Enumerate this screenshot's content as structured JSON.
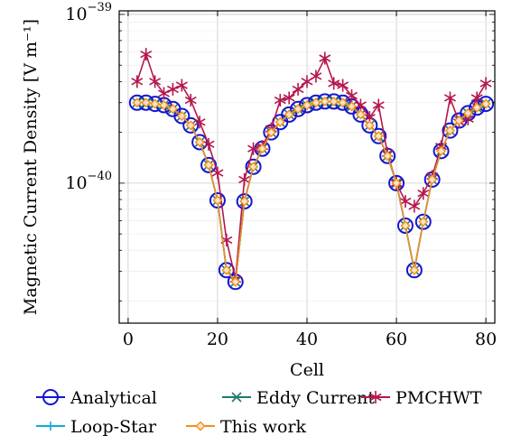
{
  "chart_data": {
    "type": "line",
    "xlabel": "Cell",
    "ylabel": "Magnetic Current Density [V m⁻¹]",
    "x_ticks": [
      0,
      20,
      40,
      60,
      80
    ],
    "y_ticks": [
      {
        "base": "10",
        "exp": "−39",
        "value": 1e-39
      },
      {
        "base": "10",
        "exp": "−40",
        "value": 1e-40
      }
    ],
    "xlim": [
      -2,
      82
    ],
    "ylim": [
      1.48e-41,
      1.05e-39
    ],
    "y_scale": "log",
    "grid": true,
    "legend_position": "bottom",
    "x": [
      2,
      4,
      6,
      8,
      10,
      12,
      14,
      16,
      18,
      20,
      22,
      24,
      26,
      28,
      30,
      32,
      34,
      36,
      38,
      40,
      42,
      44,
      46,
      48,
      50,
      52,
      54,
      56,
      58,
      60,
      62,
      64,
      66,
      68,
      70,
      72,
      74,
      76,
      78,
      80
    ],
    "series": [
      {
        "name": "Analytical",
        "color": "#1515d0",
        "marker": "circle",
        "values": [
          3e-40,
          3e-40,
          2.95e-40,
          2.9e-40,
          2.75e-40,
          2.5e-40,
          2.2e-40,
          1.75e-40,
          1.28e-40,
          7.9e-41,
          3.05e-41,
          2.6e-41,
          7.8e-41,
          1.25e-40,
          1.6e-40,
          2e-40,
          2.3e-40,
          2.55e-40,
          2.75e-40,
          2.9e-40,
          3e-40,
          3.05e-40,
          3.05e-40,
          3e-40,
          2.85e-40,
          2.55e-40,
          2.2e-40,
          1.9e-40,
          1.45e-40,
          1e-40,
          5.6e-41,
          3.05e-41,
          5.9e-41,
          1.05e-40,
          1.55e-40,
          2.05e-40,
          2.35e-40,
          2.6e-40,
          2.8e-40,
          2.95e-40
        ]
      },
      {
        "name": "Eddy Current",
        "color": "#1e7a6e",
        "marker": "x",
        "values": [
          3e-40,
          3e-40,
          2.95e-40,
          2.9e-40,
          2.75e-40,
          2.5e-40,
          2.2e-40,
          1.75e-40,
          1.28e-40,
          7.9e-41,
          3.05e-41,
          2.6e-41,
          7.8e-41,
          1.25e-40,
          1.6e-40,
          2e-40,
          2.3e-40,
          2.55e-40,
          2.75e-40,
          2.9e-40,
          3e-40,
          3.05e-40,
          3.05e-40,
          3e-40,
          2.85e-40,
          2.55e-40,
          2.2e-40,
          1.9e-40,
          1.45e-40,
          1e-40,
          5.6e-41,
          3.05e-41,
          5.9e-41,
          1.05e-40,
          1.55e-40,
          2.05e-40,
          2.35e-40,
          2.6e-40,
          2.8e-40,
          2.95e-40
        ]
      },
      {
        "name": "PMCHWT",
        "color": "#b5164e",
        "marker": "star",
        "values": [
          4e-40,
          5.8e-40,
          4e-40,
          3.4e-40,
          3.6e-40,
          3.8e-40,
          3.1e-40,
          2.3e-40,
          1.7e-40,
          1.15e-40,
          4.6e-41,
          2.7e-41,
          1.05e-40,
          1.6e-40,
          1.65e-40,
          2.1e-40,
          3.1e-40,
          3.2e-40,
          3.6e-40,
          4e-40,
          4.3e-40,
          5.5e-40,
          3.9e-40,
          3.8e-40,
          3.3e-40,
          2.9e-40,
          2.45e-40,
          2.9e-40,
          1.5e-40,
          1e-40,
          7.8e-41,
          7.3e-41,
          8.7e-41,
          1.1e-40,
          1.65e-40,
          3.2e-40,
          2.3e-40,
          2.4e-40,
          3.2e-40,
          3.9e-40
        ]
      },
      {
        "name": "Loop-Star",
        "color": "#12a8e0",
        "marker": "plus",
        "values": [
          3e-40,
          3e-40,
          2.95e-40,
          2.9e-40,
          2.75e-40,
          2.5e-40,
          2.2e-40,
          1.75e-40,
          1.28e-40,
          7.9e-41,
          3.05e-41,
          2.6e-41,
          7.8e-41,
          1.25e-40,
          1.6e-40,
          2e-40,
          2.3e-40,
          2.55e-40,
          2.75e-40,
          2.9e-40,
          3e-40,
          3.05e-40,
          3.05e-40,
          3e-40,
          2.85e-40,
          2.55e-40,
          2.2e-40,
          1.9e-40,
          1.45e-40,
          1e-40,
          5.6e-41,
          3.05e-41,
          5.9e-41,
          1.05e-40,
          1.55e-40,
          2.05e-40,
          2.35e-40,
          2.6e-40,
          2.8e-40,
          2.95e-40
        ]
      },
      {
        "name": "This work",
        "color": "#f0901e",
        "marker": "diamond",
        "values": [
          3e-40,
          3e-40,
          2.95e-40,
          2.9e-40,
          2.75e-40,
          2.5e-40,
          2.2e-40,
          1.75e-40,
          1.28e-40,
          7.9e-41,
          3.05e-41,
          2.6e-41,
          7.8e-41,
          1.25e-40,
          1.6e-40,
          2e-40,
          2.3e-40,
          2.55e-40,
          2.75e-40,
          2.9e-40,
          3e-40,
          3.05e-40,
          3.05e-40,
          3e-40,
          2.85e-40,
          2.55e-40,
          2.2e-40,
          1.9e-40,
          1.45e-40,
          1e-40,
          5.6e-41,
          3.05e-41,
          5.9e-41,
          1.05e-40,
          1.55e-40,
          2.05e-40,
          2.35e-40,
          2.6e-40,
          2.8e-40,
          2.95e-40
        ]
      }
    ],
    "legend": {
      "rows": [
        [
          "Analytical",
          "Eddy Current",
          "PMCHWT"
        ],
        [
          "Loop-Star",
          "This work"
        ]
      ]
    }
  }
}
